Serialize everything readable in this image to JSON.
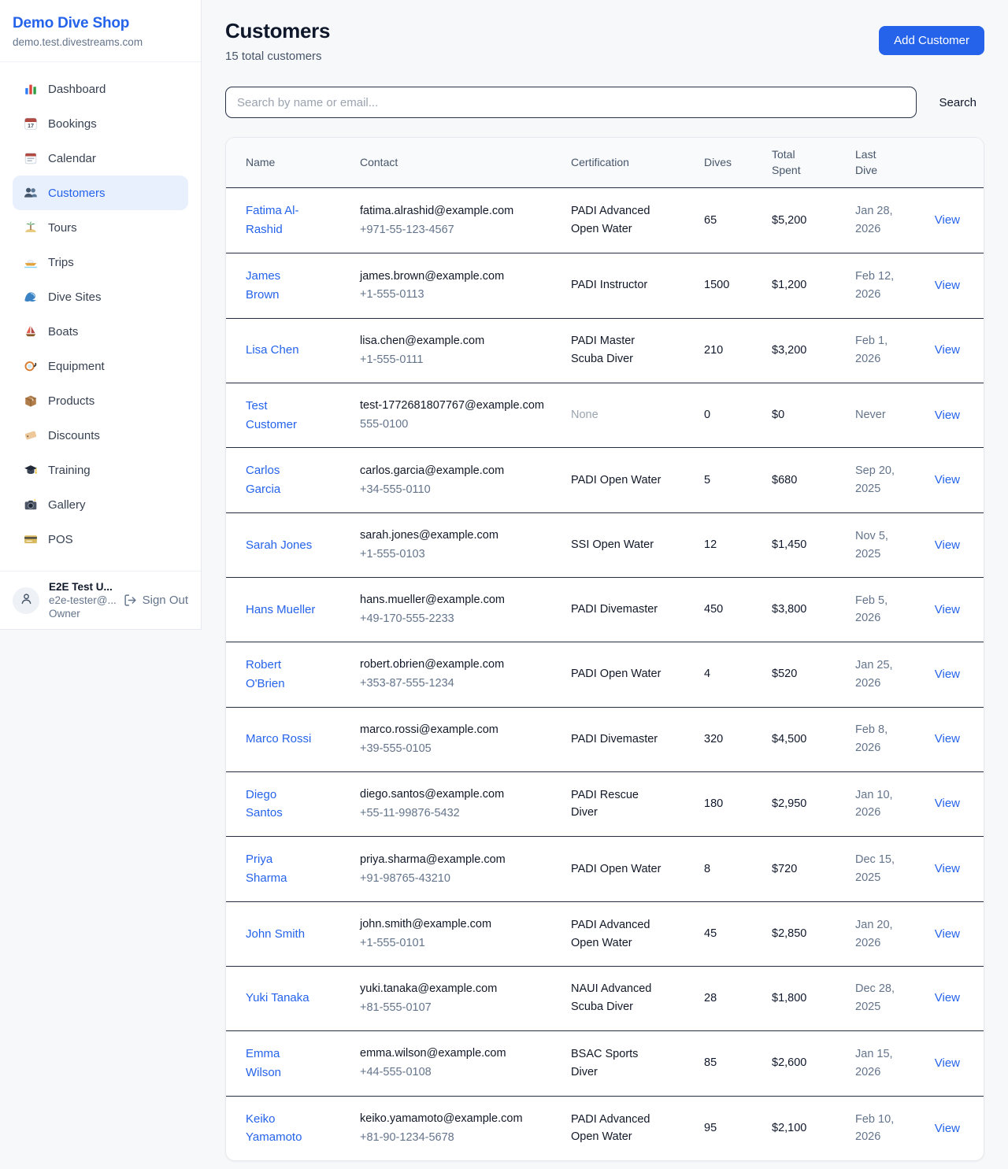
{
  "colors": {
    "accent_blue": "#2563eb",
    "page_bg": "#f7f8fa",
    "card_bg": "#ffffff",
    "active_nav_bg": "#e8f0fe",
    "row_divider": "#222d42",
    "dark_text": "#0f172a",
    "muted_text": "#64748b",
    "faint_text": "#9aa5b1"
  },
  "sidebar": {
    "shop_name": "Demo Dive Shop",
    "shop_domain": "demo.test.divestreams.com",
    "items": [
      {
        "label": "Dashboard",
        "icon": "bar-chart-icon",
        "active": false
      },
      {
        "label": "Bookings",
        "icon": "calendar-17-icon",
        "active": false
      },
      {
        "label": "Calendar",
        "icon": "calendar-icon",
        "active": false
      },
      {
        "label": "Customers",
        "icon": "users-icon",
        "active": true
      },
      {
        "label": "Tours",
        "icon": "island-icon",
        "active": false
      },
      {
        "label": "Trips",
        "icon": "speedboat-icon",
        "active": false
      },
      {
        "label": "Dive Sites",
        "icon": "wave-icon",
        "active": false
      },
      {
        "label": "Boats",
        "icon": "sailboat-icon",
        "active": false
      },
      {
        "label": "Equipment",
        "icon": "dive-mask-icon",
        "active": false
      },
      {
        "label": "Products",
        "icon": "package-icon",
        "active": false
      },
      {
        "label": "Discounts",
        "icon": "tag-icon",
        "active": false
      },
      {
        "label": "Training",
        "icon": "grad-cap-icon",
        "active": false
      },
      {
        "label": "Gallery",
        "icon": "camera-icon",
        "active": false
      },
      {
        "label": "POS",
        "icon": "credit-card-icon",
        "active": false
      }
    ],
    "user": {
      "name": "E2E Test U...",
      "email": "e2e-tester@...",
      "role": "Owner",
      "sign_out_label": "Sign Out"
    }
  },
  "header": {
    "title": "Customers",
    "subtitle": "15 total customers",
    "add_button_label": "Add Customer"
  },
  "search": {
    "placeholder": "Search by name or email...",
    "button_label": "Search"
  },
  "table": {
    "columns": [
      "Name",
      "Contact",
      "Certification",
      "Dives",
      "Total Spent",
      "Last Dive",
      ""
    ],
    "rows": [
      {
        "name": "Fatima Al-Rashid",
        "email": "fatima.alrashid@example.com",
        "phone": "+971-55-123-4567",
        "certification": "PADI Advanced Open Water",
        "dives": "65",
        "total_spent": "$5,200",
        "last_dive": "Jan 28, 2026",
        "action": "View"
      },
      {
        "name": "James Brown",
        "email": "james.brown@example.com",
        "phone": "+1-555-0113",
        "certification": "PADI Instructor",
        "dives": "1500",
        "total_spent": "$1,200",
        "last_dive": "Feb 12, 2026",
        "action": "View"
      },
      {
        "name": "Lisa Chen",
        "email": "lisa.chen@example.com",
        "phone": "+1-555-0111",
        "certification": "PADI Master Scuba Diver",
        "dives": "210",
        "total_spent": "$3,200",
        "last_dive": "Feb 1, 2026",
        "action": "View"
      },
      {
        "name": "Test Customer",
        "email": "test-1772681807767@example.com",
        "phone": "555-0100",
        "certification": "None",
        "dives": "0",
        "total_spent": "$0",
        "last_dive": "Never",
        "action": "View"
      },
      {
        "name": "Carlos Garcia",
        "email": "carlos.garcia@example.com",
        "phone": "+34-555-0110",
        "certification": "PADI Open Water",
        "dives": "5",
        "total_spent": "$680",
        "last_dive": "Sep 20, 2025",
        "action": "View"
      },
      {
        "name": "Sarah Jones",
        "email": "sarah.jones@example.com",
        "phone": "+1-555-0103",
        "certification": "SSI Open Water",
        "dives": "12",
        "total_spent": "$1,450",
        "last_dive": "Nov 5, 2025",
        "action": "View"
      },
      {
        "name": "Hans Mueller",
        "email": "hans.mueller@example.com",
        "phone": "+49-170-555-2233",
        "certification": "PADI Divemaster",
        "dives": "450",
        "total_spent": "$3,800",
        "last_dive": "Feb 5, 2026",
        "action": "View"
      },
      {
        "name": "Robert O'Brien",
        "email": "robert.obrien@example.com",
        "phone": "+353-87-555-1234",
        "certification": "PADI Open Water",
        "dives": "4",
        "total_spent": "$520",
        "last_dive": "Jan 25, 2026",
        "action": "View"
      },
      {
        "name": "Marco Rossi",
        "email": "marco.rossi@example.com",
        "phone": "+39-555-0105",
        "certification": "PADI Divemaster",
        "dives": "320",
        "total_spent": "$4,500",
        "last_dive": "Feb 8, 2026",
        "action": "View"
      },
      {
        "name": "Diego Santos",
        "email": "diego.santos@example.com",
        "phone": "+55-11-99876-5432",
        "certification": "PADI Rescue Diver",
        "dives": "180",
        "total_spent": "$2,950",
        "last_dive": "Jan 10, 2026",
        "action": "View"
      },
      {
        "name": "Priya Sharma",
        "email": "priya.sharma@example.com",
        "phone": "+91-98765-43210",
        "certification": "PADI Open Water",
        "dives": "8",
        "total_spent": "$720",
        "last_dive": "Dec 15, 2025",
        "action": "View"
      },
      {
        "name": "John Smith",
        "email": "john.smith@example.com",
        "phone": "+1-555-0101",
        "certification": "PADI Advanced Open Water",
        "dives": "45",
        "total_spent": "$2,850",
        "last_dive": "Jan 20, 2026",
        "action": "View"
      },
      {
        "name": "Yuki Tanaka",
        "email": "yuki.tanaka@example.com",
        "phone": "+81-555-0107",
        "certification": "NAUI Advanced Scuba Diver",
        "dives": "28",
        "total_spent": "$1,800",
        "last_dive": "Dec 28, 2025",
        "action": "View"
      },
      {
        "name": "Emma Wilson",
        "email": "emma.wilson@example.com",
        "phone": "+44-555-0108",
        "certification": "BSAC Sports Diver",
        "dives": "85",
        "total_spent": "$2,600",
        "last_dive": "Jan 15, 2026",
        "action": "View"
      },
      {
        "name": "Keiko Yamamoto",
        "email": "keiko.yamamoto@example.com",
        "phone": "+81-90-1234-5678",
        "certification": "PADI Advanced Open Water",
        "dives": "95",
        "total_spent": "$2,100",
        "last_dive": "Feb 10, 2026",
        "action": "View"
      }
    ]
  }
}
